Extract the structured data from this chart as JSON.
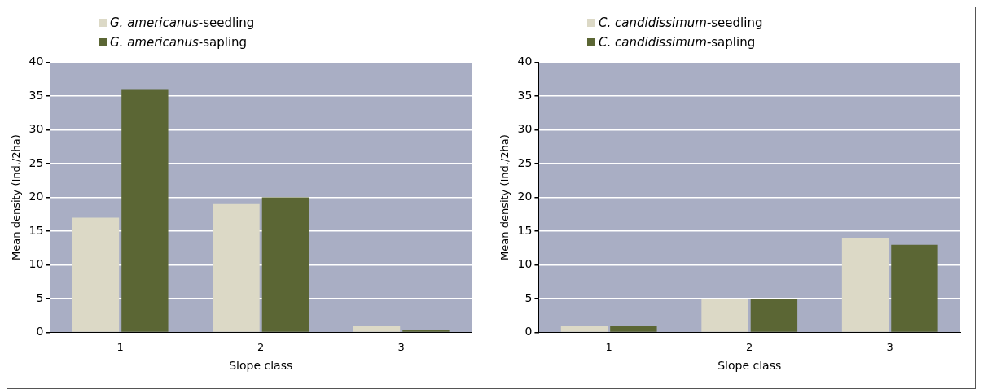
{
  "chart_data": [
    {
      "type": "bar",
      "xlabel": "Slope class",
      "ylabel": "Mean density (Ind./2ha)",
      "categories": [
        "1",
        "2",
        "3"
      ],
      "ylim": [
        0,
        40
      ],
      "yticks": [
        0,
        5,
        10,
        15,
        20,
        25,
        30,
        35,
        40
      ],
      "grid": "y",
      "legend": "top left",
      "series": [
        {
          "name": "G. americanus-seedling",
          "color": "#dcd9c6",
          "values": [
            17,
            19,
            1
          ]
        },
        {
          "name": "G. americanus-sapling",
          "color": "#5b6634",
          "values": [
            36,
            20,
            0.3
          ]
        }
      ]
    },
    {
      "type": "bar",
      "xlabel": "Slope class",
      "ylabel": "Mean density (Ind./2ha)",
      "categories": [
        "1",
        "2",
        "3"
      ],
      "ylim": [
        0,
        40
      ],
      "yticks": [
        0,
        5,
        10,
        15,
        20,
        25,
        30,
        35,
        40
      ],
      "grid": "y",
      "legend": "top left",
      "series": [
        {
          "name": "C. candidissimum-seedling",
          "color": "#dcd9c6",
          "values": [
            1,
            5,
            14
          ]
        },
        {
          "name": "C. candidissimum-sapling",
          "color": "#5b6634",
          "values": [
            1,
            5,
            13
          ]
        }
      ]
    }
  ]
}
